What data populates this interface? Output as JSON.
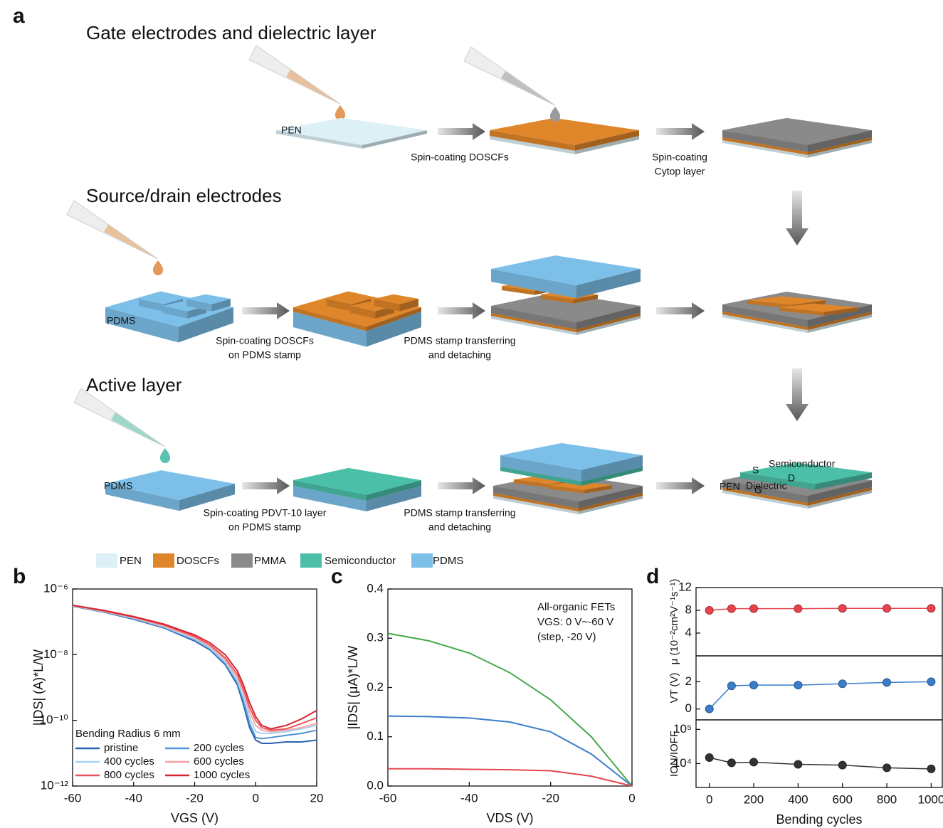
{
  "figure": {
    "panel_labels": [
      "a",
      "b",
      "c",
      "d"
    ],
    "sections": [
      "Gate electrodes and dielectric layer",
      "Source/drain electrodes",
      "Active layer"
    ],
    "steps": [
      [
        "Spin-coating DOSCFs"
      ],
      [
        "Spin-coating",
        "Cytop layer"
      ],
      [
        "Spin-coating DOSCFs",
        "on PDMS stamp"
      ],
      [
        "PDMS stamp transferring",
        "and detaching"
      ],
      [
        "Spin-coating PDVT-10 layer",
        "on PDMS stamp"
      ],
      [
        "PDMS stamp transferring",
        "and detaching"
      ]
    ],
    "layer_labels": [
      "PEN",
      "PDMS",
      "PDMS",
      "Semiconductor",
      "S",
      "D",
      "Dielectric",
      "G",
      "PEN"
    ],
    "legend": [
      {
        "name": "PEN",
        "color": "#dcf0f6"
      },
      {
        "name": "DOSCFs",
        "color": "#e0862a"
      },
      {
        "name": "PMMA",
        "color": "#8a8a8a"
      },
      {
        "name": "Semiconductor",
        "color": "#4cbfa8"
      },
      {
        "name": "PDMS",
        "color": "#7cc0ea"
      }
    ]
  },
  "chart_data": [
    {
      "type": "line",
      "log_y": true,
      "x": [
        -60,
        -50,
        -40,
        -30,
        -20,
        -15,
        -10,
        -6,
        -4,
        -2,
        0,
        2,
        5,
        10,
        15,
        20
      ],
      "xlim": [
        -60,
        20
      ],
      "xticks": [
        -60,
        -40,
        -20,
        0,
        20
      ],
      "ylim": [
        1e-12,
        1e-06
      ],
      "yticks": [
        {
          "value": 1e-12,
          "label": "10⁻¹²"
        },
        {
          "value": 1e-10,
          "label": "10⁻¹⁰"
        },
        {
          "value": 1e-08,
          "label": "10⁻⁸"
        },
        {
          "value": 1e-06,
          "label": "10⁻⁶"
        }
      ],
      "xlabel": "VGS (V)",
      "ylabel": "|IDS| (A)*L/W",
      "legend_title": "Bending Radius 6 mm",
      "series": [
        {
          "name": "pristine",
          "color": "#2a64b0",
          "values": [
            3e-07,
            2e-07,
            1.2e-07,
            6.5e-08,
            2.6e-08,
            1.4e-08,
            5e-09,
            1.2e-09,
            3e-10,
            6e-11,
            2.5e-11,
            2e-11,
            2e-11,
            2.2e-11,
            2.2e-11,
            2.5e-11
          ]
        },
        {
          "name": "200 cycles",
          "color": "#4f94d6",
          "values": [
            3e-07,
            2e-07,
            1.25e-07,
            6.8e-08,
            2.8e-08,
            1.5e-08,
            5.5e-09,
            1.4e-09,
            4e-10,
            8e-11,
            3e-11,
            2.8e-11,
            3e-11,
            3.5e-11,
            4e-11,
            5e-11
          ]
        },
        {
          "name": "400 cycles",
          "color": "#a8d3f0",
          "values": [
            3.1e-07,
            2.1e-07,
            1.3e-07,
            7e-08,
            3e-08,
            1.6e-08,
            6e-09,
            1.6e-09,
            5e-10,
            1.2e-10,
            4.5e-11,
            4e-11,
            4e-11,
            4.5e-11,
            5.5e-11,
            7e-11
          ]
        },
        {
          "name": "600 cycles",
          "color": "#f3a5a8",
          "values": [
            3.1e-07,
            2.1e-07,
            1.35e-07,
            7.5e-08,
            3.3e-08,
            1.8e-08,
            7e-09,
            2e-09,
            7e-10,
            1.8e-10,
            7e-11,
            5e-11,
            4.5e-11,
            5e-11,
            6e-11,
            8e-11
          ]
        },
        {
          "name": "800 cycles",
          "color": "#e8555d",
          "values": [
            3.2e-07,
            2.2e-07,
            1.4e-07,
            8e-08,
            3.6e-08,
            2e-08,
            8e-09,
            2.5e-09,
            9e-10,
            2.5e-10,
            1e-10,
            6e-11,
            5e-11,
            5.5e-11,
            8e-11,
            1.2e-10
          ]
        },
        {
          "name": "1000 cycles",
          "color": "#d62630",
          "values": [
            3.2e-07,
            2.25e-07,
            1.45e-07,
            8.5e-08,
            4e-08,
            2.3e-08,
            1e-08,
            3.2e-09,
            1.2e-09,
            3.5e-10,
            1.3e-10,
            7e-11,
            5.5e-11,
            7e-11,
            1.1e-10,
            2e-10
          ]
        }
      ]
    },
    {
      "type": "line",
      "x": [
        -60,
        -50,
        -40,
        -30,
        -20,
        -10,
        0
      ],
      "xlim": [
        -60,
        0
      ],
      "xticks": [
        -60,
        -40,
        -20,
        0
      ],
      "ylim": [
        0,
        0.4
      ],
      "yticks": [
        {
          "value": 0,
          "label": "0.0"
        },
        0.1,
        0.2,
        0.3,
        0.4
      ],
      "xlabel": "VDS (V)",
      "ylabel": "|IDS| (μA)*L/W",
      "annotations": [
        "All-organic FETs",
        "VGS: 0 V~-60 V",
        "(step, -20 V)"
      ],
      "series": [
        {
          "color": "#45a94b",
          "values": [
            0.31,
            0.295,
            0.27,
            0.23,
            0.175,
            0.1,
            0.0
          ]
        },
        {
          "color": "#3a7ecb",
          "values": [
            0.142,
            0.141,
            0.138,
            0.13,
            0.11,
            0.065,
            0.0
          ]
        },
        {
          "color": "#e4474f",
          "values": [
            0.035,
            0.035,
            0.034,
            0.033,
            0.031,
            0.02,
            0.0
          ]
        }
      ]
    },
    {
      "type": "line",
      "markers": true,
      "x": [
        0,
        100,
        200,
        400,
        600,
        800,
        1000
      ],
      "xlim": [
        -60,
        1050
      ],
      "ylim": [
        0,
        12
      ],
      "yticks": [
        4,
        8,
        12
      ],
      "ylabel": "μ (10⁻²cm²V⁻¹s⁻¹)",
      "series": [
        {
          "color": "#e8434b",
          "values": [
            8.0,
            8.3,
            8.3,
            8.3,
            8.35,
            8.35,
            8.35
          ]
        }
      ]
    },
    {
      "type": "line",
      "markers": true,
      "x": [
        0,
        100,
        200,
        400,
        600,
        800,
        1000
      ],
      "xlim": [
        -60,
        1050
      ],
      "ylim": [
        -0.8,
        3.9
      ],
      "yticks": [
        0,
        2
      ],
      "ylabel": "VT (V)",
      "series": [
        {
          "color": "#3a7dc9",
          "values": [
            0,
            1.7,
            1.75,
            1.75,
            1.85,
            1.95,
            2.0
          ]
        }
      ]
    },
    {
      "type": "line",
      "markers": true,
      "log_y": true,
      "x": [
        0,
        100,
        200,
        400,
        600,
        800,
        1000
      ],
      "xlim": [
        -60,
        1050
      ],
      "xticks": [
        0,
        200,
        400,
        600,
        800,
        1000
      ],
      "ylim": [
        2000,
        190000
      ],
      "yticks": [
        {
          "value": 10000,
          "label": "10⁴"
        },
        {
          "value": 100000,
          "label": "10⁵"
        }
      ],
      "xlabel": "Bending cycles",
      "ylabel": "ION/IOFF",
      "series": [
        {
          "color": "#333333",
          "values": [
            15000,
            10500,
            11000,
            9500,
            9000,
            7500,
            7000
          ]
        }
      ]
    }
  ]
}
